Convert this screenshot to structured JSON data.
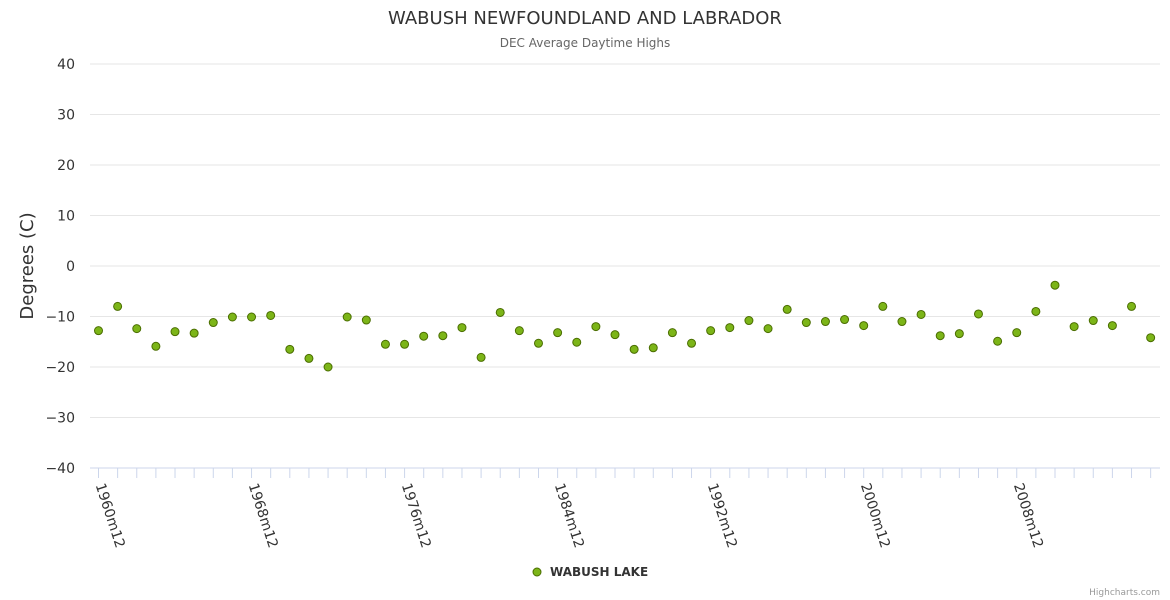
{
  "chart_data": {
    "type": "scatter",
    "title": "WABUSH NEWFOUNDLAND AND LABRADOR",
    "subtitle": "DEC Average Daytime Highs",
    "ylabel": "Degrees (C)",
    "xlabel": "",
    "ylim": [
      -40,
      40
    ],
    "yticks": [
      40,
      30,
      20,
      10,
      0,
      -10,
      -20,
      -30,
      -40
    ],
    "x_start_year": 1960,
    "x_tick_labels": [
      "1960m12",
      "1968m12",
      "1976m12",
      "1984m12",
      "1992m12",
      "2000m12",
      "2008m12"
    ],
    "series": [
      {
        "name": "WABUSH LAKE",
        "x": [
          1960,
          1961,
          1962,
          1963,
          1964,
          1965,
          1966,
          1967,
          1968,
          1969,
          1970,
          1971,
          1972,
          1973,
          1974,
          1975,
          1976,
          1977,
          1978,
          1979,
          1980,
          1981,
          1982,
          1983,
          1984,
          1985,
          1986,
          1987,
          1988,
          1989,
          1990,
          1991,
          1992,
          1993,
          1994,
          1995,
          1996,
          1997,
          1998,
          1999,
          2000,
          2001,
          2002,
          2003,
          2004,
          2005,
          2006,
          2007,
          2008,
          2009,
          2010,
          2011,
          2012,
          2013,
          2014,
          2015
        ],
        "values": [
          -12.8,
          -8.0,
          -12.4,
          -15.9,
          -13.0,
          -13.3,
          -11.2,
          -10.1,
          -10.1,
          -9.8,
          -16.5,
          -18.3,
          -20.0,
          -10.1,
          -10.7,
          -15.5,
          -15.5,
          -13.9,
          -13.8,
          -12.2,
          -18.1,
          -9.2,
          -12.8,
          -15.3,
          -13.2,
          -15.1,
          -12.0,
          -13.6,
          -16.5,
          -16.2,
          -13.2,
          -15.3,
          -12.8,
          -12.2,
          -10.8,
          -12.4,
          -8.6,
          -11.2,
          -11.0,
          -10.6,
          -11.8,
          -8.0,
          -11.0,
          -9.6,
          -13.8,
          -13.4,
          -9.5,
          -14.9,
          -13.2,
          -9.0,
          -3.8,
          -12.0,
          -10.8,
          -11.8,
          -8.0,
          -14.2
        ],
        "color": "#7cb518",
        "edge_color": "#4a6d00"
      }
    ],
    "legend": "bottom-center",
    "credits": "Highcharts.com",
    "grid": true
  }
}
